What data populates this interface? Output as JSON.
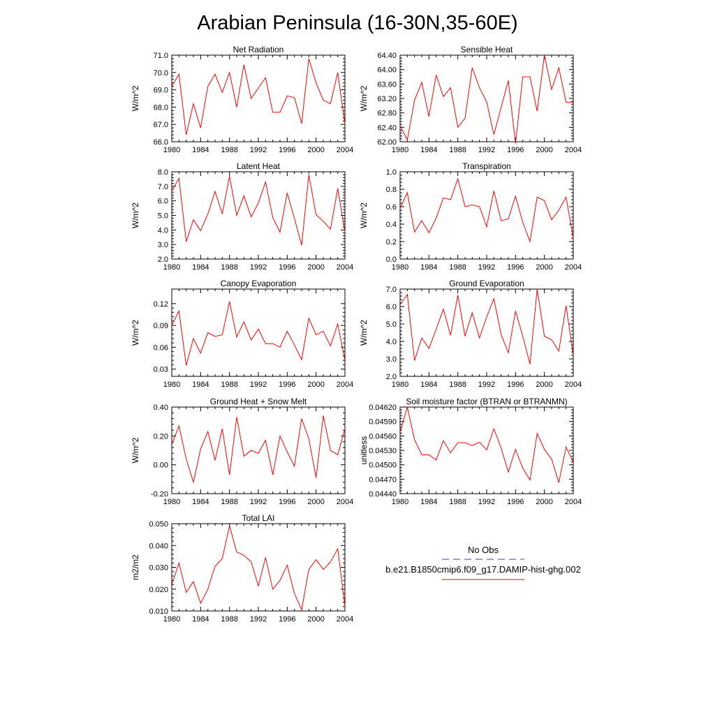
{
  "figure": {
    "title": "Arabian Peninsula (16-30N,35-60E)",
    "line_color": "#ff0000",
    "obs_color": "#3b3bb3"
  },
  "legend": {
    "obs_label": "No Obs",
    "model_label": "b.e21.B1850cmip6.f09_g17.DAMIP-hist-ghg.002"
  },
  "chart_data": [
    {
      "type": "line",
      "title": "Net Radiation",
      "ylabel": "W/m^2",
      "xlim": [
        1980,
        2004
      ],
      "ylim": [
        66.0,
        71.0
      ],
      "yticks": [
        66.0,
        67.0,
        68.0,
        69.0,
        70.0,
        71.0
      ],
      "ytick_labels": [
        "66.0",
        "67.0",
        "68.0",
        "69.0",
        "70.0",
        "71.0"
      ],
      "xticks": [
        1980,
        1984,
        1988,
        1992,
        1996,
        2000,
        2004
      ],
      "x": [
        1980,
        1981,
        1982,
        1983,
        1984,
        1985,
        1986,
        1987,
        1988,
        1989,
        1990,
        1991,
        1992,
        1993,
        1994,
        1995,
        1996,
        1997,
        1998,
        1999,
        2000,
        2001,
        2002,
        2003,
        2004
      ],
      "series": [
        {
          "values": [
            69.2,
            69.9,
            66.4,
            68.2,
            66.8,
            69.2,
            69.9,
            68.85,
            70.0,
            68.0,
            70.45,
            68.5,
            69.1,
            69.7,
            67.7,
            67.7,
            68.65,
            68.55,
            67.05,
            70.8,
            69.4,
            68.4,
            68.2,
            70.0,
            67.0
          ]
        }
      ]
    },
    {
      "type": "line",
      "title": "Sensible Heat",
      "ylabel": "W/m^2",
      "xlim": [
        1980,
        2004
      ],
      "ylim": [
        62.0,
        64.4
      ],
      "yticks": [
        62.0,
        62.4,
        62.8,
        63.2,
        63.6,
        64.0,
        64.4
      ],
      "ytick_labels": [
        "62.00",
        "62.40",
        "62.80",
        "63.20",
        "63.60",
        "64.00",
        "64.40"
      ],
      "xticks": [
        1980,
        1984,
        1988,
        1992,
        1996,
        2000,
        2004
      ],
      "x": [
        1980,
        1981,
        1982,
        1983,
        1984,
        1985,
        1986,
        1987,
        1988,
        1989,
        1990,
        1991,
        1992,
        1993,
        1994,
        1995,
        1996,
        1997,
        1998,
        1999,
        2000,
        2001,
        2002,
        2003,
        2004
      ],
      "series": [
        {
          "values": [
            62.45,
            62.05,
            63.15,
            63.65,
            62.7,
            63.85,
            63.25,
            63.5,
            62.4,
            62.65,
            64.05,
            63.5,
            63.1,
            62.2,
            62.95,
            63.7,
            61.95,
            63.8,
            63.8,
            62.85,
            64.4,
            63.45,
            64.05,
            63.1,
            63.1
          ]
        }
      ]
    },
    {
      "type": "line",
      "title": "Latent Heat",
      "ylabel": "W/m^2",
      "xlim": [
        1980,
        2004
      ],
      "ylim": [
        2.0,
        8.0
      ],
      "yticks": [
        2.0,
        3.0,
        4.0,
        5.0,
        6.0,
        7.0,
        8.0
      ],
      "ytick_labels": [
        "2.0",
        "3.0",
        "4.0",
        "5.0",
        "6.0",
        "7.0",
        "8.0"
      ],
      "xticks": [
        1980,
        1984,
        1988,
        1992,
        1996,
        2000,
        2004
      ],
      "x": [
        1980,
        1981,
        1982,
        1983,
        1984,
        1985,
        1986,
        1987,
        1988,
        1989,
        1990,
        1991,
        1992,
        1993,
        1994,
        1995,
        1996,
        1997,
        1998,
        1999,
        2000,
        2001,
        2002,
        2003,
        2004
      ],
      "series": [
        {
          "values": [
            6.7,
            7.55,
            3.2,
            4.7,
            3.95,
            5.1,
            6.65,
            5.1,
            7.7,
            5.0,
            6.35,
            4.9,
            5.85,
            7.3,
            4.85,
            3.85,
            6.55,
            4.8,
            2.95,
            7.8,
            5.05,
            4.6,
            4.05,
            6.85,
            3.85
          ]
        }
      ]
    },
    {
      "type": "line",
      "title": "Transpiration",
      "ylabel": "W/m^2",
      "xlim": [
        1980,
        2004
      ],
      "ylim": [
        0.0,
        1.0
      ],
      "yticks": [
        0.0,
        0.2,
        0.4,
        0.6,
        0.8,
        1.0
      ],
      "ytick_labels": [
        "0.0",
        "0.2",
        "0.4",
        "0.6",
        "0.8",
        "1.0"
      ],
      "xticks": [
        1980,
        1984,
        1988,
        1992,
        1996,
        2000,
        2004
      ],
      "x": [
        1980,
        1981,
        1982,
        1983,
        1984,
        1985,
        1986,
        1987,
        1988,
        1989,
        1990,
        1991,
        1992,
        1993,
        1994,
        1995,
        1996,
        1997,
        1998,
        1999,
        2000,
        2001,
        2002,
        2003,
        2004
      ],
      "series": [
        {
          "values": [
            0.58,
            0.76,
            0.31,
            0.44,
            0.3,
            0.47,
            0.7,
            0.68,
            0.92,
            0.6,
            0.62,
            0.6,
            0.37,
            0.78,
            0.44,
            0.46,
            0.72,
            0.42,
            0.2,
            0.71,
            0.67,
            0.45,
            0.56,
            0.71,
            0.24
          ]
        }
      ]
    },
    {
      "type": "line",
      "title": "Canopy Evaporation",
      "ylabel": "W/m^2",
      "xlim": [
        1980,
        2004
      ],
      "ylim": [
        0.02,
        0.14
      ],
      "yticks": [
        0.03,
        0.06,
        0.09,
        0.12
      ],
      "ytick_labels": [
        "0.03",
        "0.06",
        "0.09",
        "0.12"
      ],
      "xticks": [
        1980,
        1984,
        1988,
        1992,
        1996,
        2000,
        2004
      ],
      "x": [
        1980,
        1981,
        1982,
        1983,
        1984,
        1985,
        1986,
        1987,
        1988,
        1989,
        1990,
        1991,
        1992,
        1993,
        1994,
        1995,
        1996,
        1997,
        1998,
        1999,
        2000,
        2001,
        2002,
        2003,
        2004
      ],
      "series": [
        {
          "values": [
            0.09,
            0.11,
            0.035,
            0.072,
            0.052,
            0.08,
            0.075,
            0.077,
            0.123,
            0.074,
            0.095,
            0.07,
            0.085,
            0.065,
            0.065,
            0.06,
            0.082,
            0.063,
            0.043,
            0.1,
            0.077,
            0.082,
            0.062,
            0.092,
            0.042
          ]
        }
      ]
    },
    {
      "type": "line",
      "title": "Ground Evaporation",
      "ylabel": "W/m^2",
      "xlim": [
        1980,
        2004
      ],
      "ylim": [
        2.0,
        7.0
      ],
      "yticks": [
        2.0,
        3.0,
        4.0,
        5.0,
        6.0,
        7.0
      ],
      "ytick_labels": [
        "2.0",
        "3.0",
        "4.0",
        "5.0",
        "6.0",
        "7.0"
      ],
      "xticks": [
        1980,
        1984,
        1988,
        1992,
        1996,
        2000,
        2004
      ],
      "x": [
        1980,
        1981,
        1982,
        1983,
        1984,
        1985,
        1986,
        1987,
        1988,
        1989,
        1990,
        1991,
        1992,
        1993,
        1994,
        1995,
        1996,
        1997,
        1998,
        1999,
        2000,
        2001,
        2002,
        2003,
        2004
      ],
      "series": [
        {
          "values": [
            6.1,
            6.7,
            2.9,
            4.2,
            3.6,
            4.7,
            5.85,
            4.35,
            6.65,
            4.3,
            5.65,
            4.2,
            5.4,
            6.45,
            4.4,
            3.35,
            5.75,
            4.3,
            2.7,
            7.0,
            4.3,
            4.1,
            3.45,
            6.05,
            3.2
          ]
        }
      ]
    },
    {
      "type": "line",
      "title": "Ground Heat + Snow Melt",
      "ylabel": "W/m^2",
      "xlim": [
        1980,
        2004
      ],
      "ylim": [
        -0.2,
        0.4
      ],
      "yticks": [
        -0.2,
        0.0,
        0.2,
        0.4
      ],
      "ytick_labels": [
        "-0.20",
        "0.00",
        "0.20",
        "0.40"
      ],
      "xticks": [
        1980,
        1984,
        1988,
        1992,
        1996,
        2000,
        2004
      ],
      "x": [
        1980,
        1981,
        1982,
        1983,
        1984,
        1985,
        1986,
        1987,
        1988,
        1989,
        1990,
        1991,
        1992,
        1993,
        1994,
        1995,
        1996,
        1997,
        1998,
        1999,
        2000,
        2001,
        2002,
        2003,
        2004
      ],
      "series": [
        {
          "values": [
            0.14,
            0.27,
            0.04,
            -0.12,
            0.11,
            0.23,
            0.03,
            0.25,
            -0.07,
            0.33,
            0.06,
            0.1,
            0.08,
            0.17,
            -0.07,
            0.2,
            0.09,
            -0.01,
            0.32,
            0.18,
            -0.09,
            0.34,
            0.1,
            0.07,
            0.25
          ]
        }
      ]
    },
    {
      "type": "line",
      "title": "Soil moisture factor (BTRAN or BTRANMN)",
      "ylabel": "unitless",
      "xlim": [
        1980,
        2004
      ],
      "ylim": [
        0.0444,
        0.0462
      ],
      "yticks": [
        0.0444,
        0.0447,
        0.045,
        0.0453,
        0.0456,
        0.0459,
        0.0462
      ],
      "ytick_labels": [
        "0.04440",
        "0.04470",
        "0.04500",
        "0.04530",
        "0.04560",
        "0.04590",
        "0.04620"
      ],
      "xticks": [
        1980,
        1984,
        1988,
        1992,
        1996,
        2000,
        2004
      ],
      "x": [
        1980,
        1981,
        1982,
        1983,
        1984,
        1985,
        1986,
        1987,
        1988,
        1989,
        1990,
        1991,
        1992,
        1993,
        1994,
        1995,
        1996,
        1997,
        1998,
        1999,
        2000,
        2001,
        2002,
        2003,
        2004
      ],
      "series": [
        {
          "values": [
            0.04568,
            0.0462,
            0.04552,
            0.04521,
            0.04521,
            0.0451,
            0.0455,
            0.04525,
            0.04546,
            0.04546,
            0.0454,
            0.04547,
            0.04531,
            0.04575,
            0.04535,
            0.04485,
            0.04532,
            0.04493,
            0.04468,
            0.04565,
            0.04532,
            0.04512,
            0.04463,
            0.04537,
            0.04505
          ]
        }
      ]
    },
    {
      "type": "line",
      "title": "Total LAI",
      "ylabel": "m2/m2",
      "xlim": [
        1980,
        2004
      ],
      "ylim": [
        0.01,
        0.05
      ],
      "yticks": [
        0.01,
        0.02,
        0.03,
        0.04,
        0.05
      ],
      "ytick_labels": [
        "0.010",
        "0.020",
        "0.030",
        "0.040",
        "0.050"
      ],
      "xticks": [
        1980,
        1984,
        1988,
        1992,
        1996,
        2000,
        2004
      ],
      "x": [
        1980,
        1981,
        1982,
        1983,
        1984,
        1985,
        1986,
        1987,
        1988,
        1989,
        1990,
        1991,
        1992,
        1993,
        1994,
        1995,
        1996,
        1997,
        1998,
        1999,
        2000,
        2001,
        2002,
        2003,
        2004
      ],
      "series": [
        {
          "values": [
            0.022,
            0.032,
            0.0185,
            0.0235,
            0.0135,
            0.02,
            0.0305,
            0.034,
            0.049,
            0.037,
            0.0355,
            0.0325,
            0.0215,
            0.0345,
            0.02,
            0.024,
            0.031,
            0.018,
            0.0105,
            0.029,
            0.0335,
            0.029,
            0.0325,
            0.0385,
            0.012
          ]
        }
      ]
    }
  ]
}
